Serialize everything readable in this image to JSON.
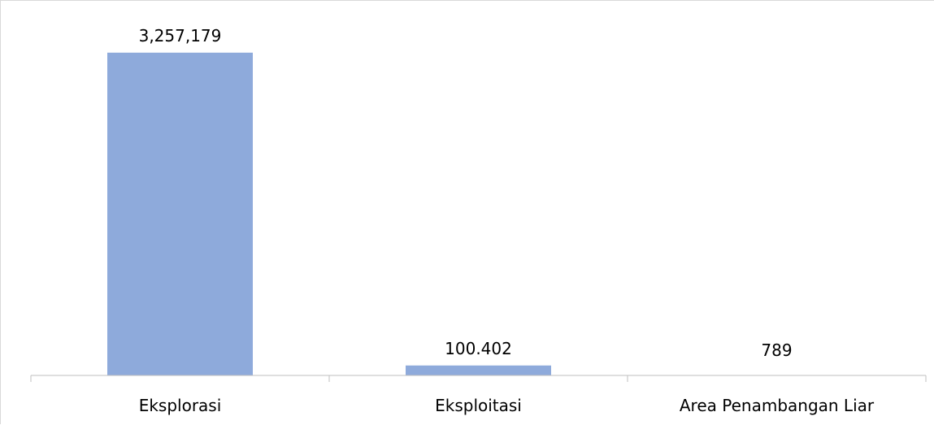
{
  "chart_data": {
    "type": "bar",
    "title": "",
    "xlabel": "",
    "ylabel": "",
    "categories": [
      "Eksplorasi",
      "Eksploitasi",
      "Area Penambangan Liar"
    ],
    "values": [
      3257.179,
      100.402,
      0.789
    ],
    "data_labels": [
      "3,257,179",
      "100.402",
      "789"
    ],
    "ylim": [
      0,
      3600
    ],
    "grid": false,
    "legend": "none",
    "bar_color": "#8eaadb"
  }
}
